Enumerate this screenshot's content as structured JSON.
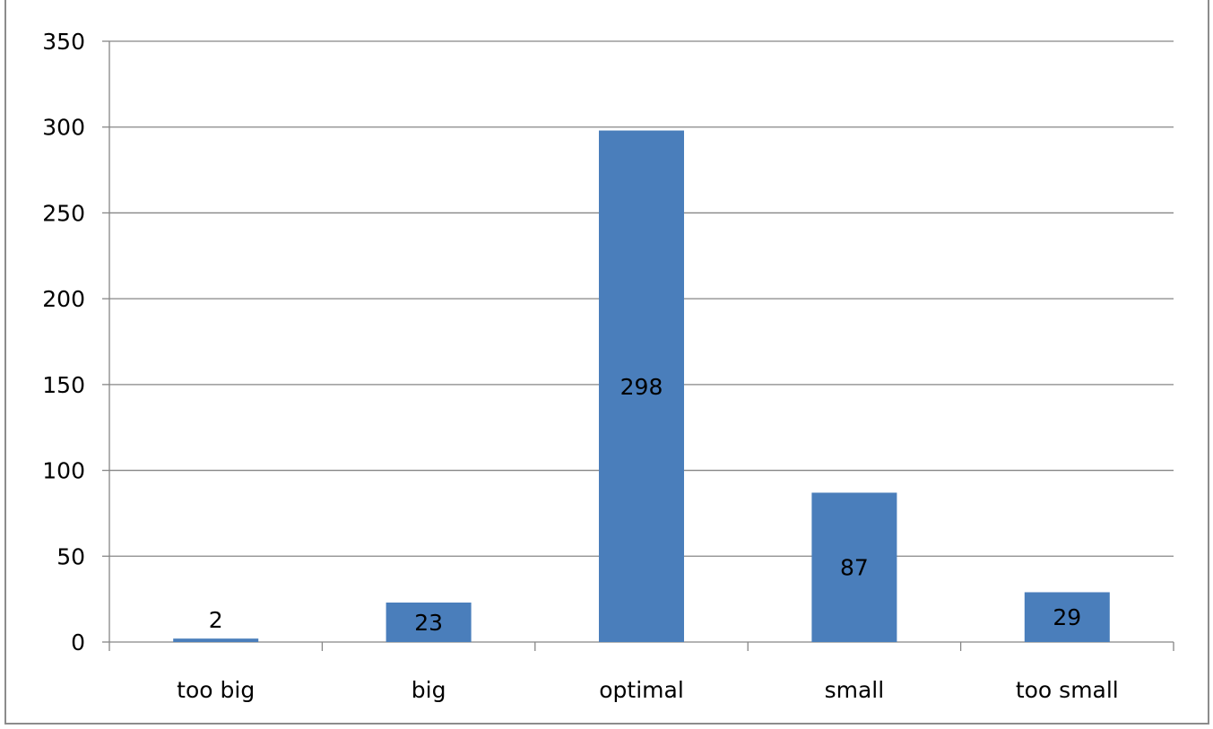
{
  "chart_data": {
    "type": "bar",
    "title": "",
    "xlabel": "",
    "ylabel": "",
    "categories": [
      "too big",
      "big",
      "optimal",
      "small",
      "too small"
    ],
    "values": [
      2,
      23,
      298,
      87,
      29
    ],
    "data_labels": [
      "2",
      "23",
      "298",
      "87",
      "29"
    ],
    "ylim": [
      0,
      350
    ],
    "yticks": [
      0,
      50,
      100,
      150,
      200,
      250,
      300,
      350
    ],
    "grid": true,
    "legend": "none",
    "bar_color": "#4a7ebb",
    "gridline_color": "#868686",
    "frame_color": "#8c8c8c"
  }
}
